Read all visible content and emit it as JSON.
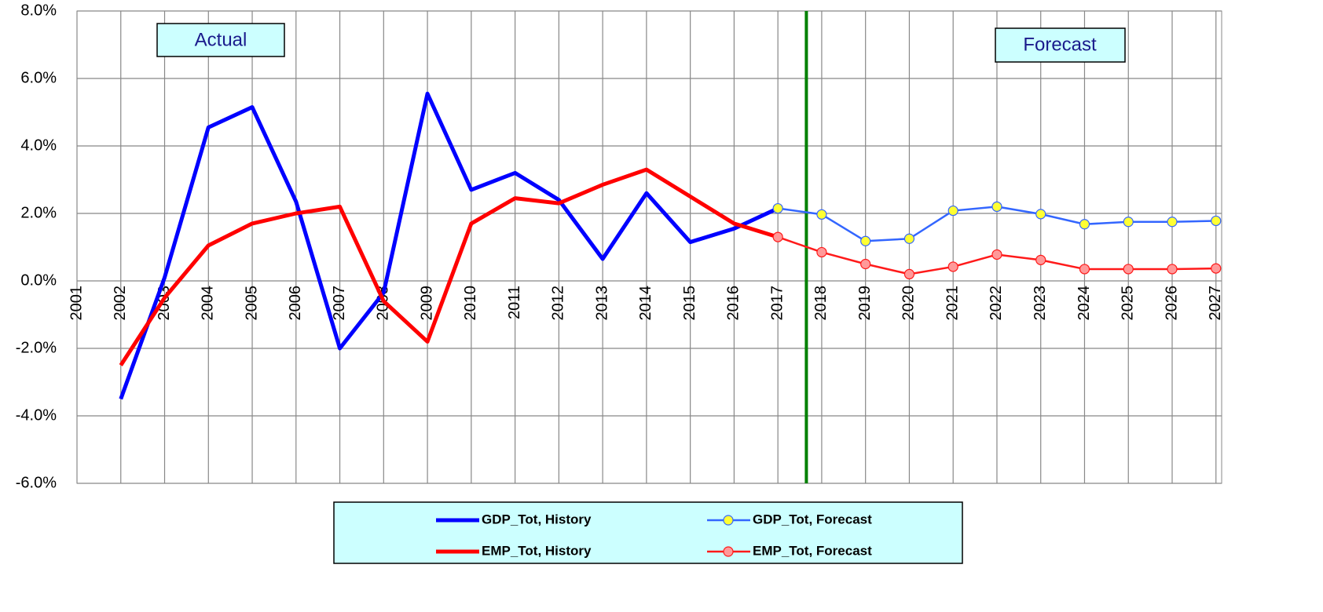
{
  "chart_data": {
    "type": "line",
    "categories": [
      "2001",
      "2002",
      "2003",
      "2004",
      "2005",
      "2006",
      "2007",
      "2008",
      "2009",
      "2010",
      "2011",
      "2012",
      "2013",
      "2014",
      "2015",
      "2016",
      "2017",
      "2018",
      "2019",
      "2020",
      "2021",
      "2022",
      "2023",
      "2024",
      "2025",
      "2026",
      "2027"
    ],
    "series": [
      {
        "name": "GDP_Tot, History",
        "color": "#0000ff",
        "values": [
          null,
          -3.5,
          0.1,
          4.55,
          5.15,
          2.35,
          -2.0,
          -0.35,
          5.55,
          2.7,
          3.2,
          2.4,
          0.65,
          2.6,
          1.15,
          1.55,
          2.15,
          null,
          null,
          null,
          null,
          null,
          null,
          null,
          null,
          null,
          null
        ]
      },
      {
        "name": "EMP_Tot, History",
        "color": "#ff0000",
        "values": [
          null,
          -2.5,
          -0.5,
          1.05,
          1.7,
          2.0,
          2.2,
          -0.6,
          -1.8,
          1.7,
          2.45,
          2.3,
          2.85,
          3.3,
          2.5,
          1.7,
          1.3,
          null,
          null,
          null,
          null,
          null,
          null,
          null,
          null,
          null,
          null
        ]
      },
      {
        "name": "GDP_Tot, Forecast",
        "color": "#3366ff",
        "marker_color": "#ffff33",
        "values": [
          null,
          null,
          null,
          null,
          null,
          null,
          null,
          null,
          null,
          null,
          null,
          null,
          null,
          null,
          null,
          null,
          2.15,
          1.97,
          1.18,
          1.25,
          2.08,
          2.2,
          1.98,
          1.68,
          1.75,
          1.75,
          1.78
        ]
      },
      {
        "name": "EMP_Tot, Forecast",
        "color": "#ff1a1a",
        "marker_color": "#ff9999",
        "values": [
          null,
          null,
          null,
          null,
          null,
          null,
          null,
          null,
          null,
          null,
          null,
          null,
          null,
          null,
          null,
          null,
          1.3,
          0.85,
          0.5,
          0.2,
          0.42,
          0.78,
          0.62,
          0.35,
          0.35,
          0.35,
          0.37
        ]
      }
    ],
    "ylim": [
      -6,
      8
    ],
    "yticks": [
      {
        "value": -6,
        "label": "-6.0%"
      },
      {
        "value": -4,
        "label": "-4.0%"
      },
      {
        "value": -2,
        "label": "-2.0%"
      },
      {
        "value": 0,
        "label": "0.0%"
      },
      {
        "value": 2,
        "label": "2.0%"
      },
      {
        "value": 4,
        "label": "4.0%"
      },
      {
        "value": 6,
        "label": "6.0%"
      },
      {
        "value": 8,
        "label": "8.0%"
      }
    ],
    "grid": true,
    "divider": {
      "x": 2017.65,
      "color": "#008000"
    },
    "annotations": [
      "Actual",
      "Forecast"
    ]
  }
}
